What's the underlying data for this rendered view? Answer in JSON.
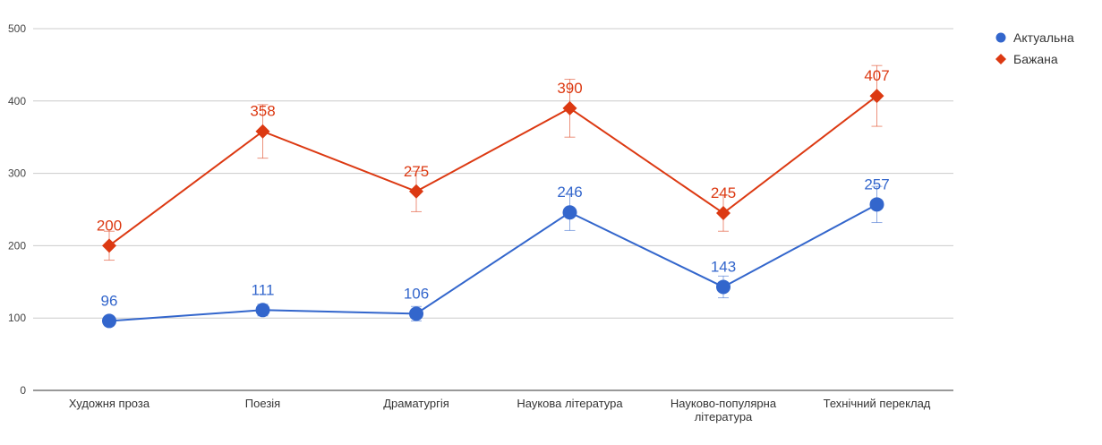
{
  "chart_data": {
    "type": "line",
    "categories": [
      [
        "Художня проза"
      ],
      [
        "Поезія"
      ],
      [
        "Драматургія"
      ],
      [
        "Наукова література"
      ],
      [
        "Науково-популярна",
        "література"
      ],
      [
        "Технічний переклад"
      ]
    ],
    "series": [
      {
        "name": "Актуальна",
        "marker": "circle",
        "color": "#3366cc",
        "values": [
          96,
          111,
          106,
          246,
          143,
          257
        ],
        "errors": [
          6,
          8,
          10,
          25,
          15,
          25
        ]
      },
      {
        "name": "Бажана",
        "marker": "diamond",
        "color": "#dc3912",
        "values": [
          200,
          358,
          275,
          390,
          245,
          407
        ],
        "errors": [
          20,
          37,
          28,
          40,
          25,
          42
        ]
      }
    ],
    "ylim": [
      0,
      500
    ],
    "yticks": [
      0,
      100,
      200,
      300,
      400,
      500
    ],
    "grid": true,
    "legend_position": "top-right",
    "title": "",
    "xlabel": "",
    "ylabel": ""
  }
}
